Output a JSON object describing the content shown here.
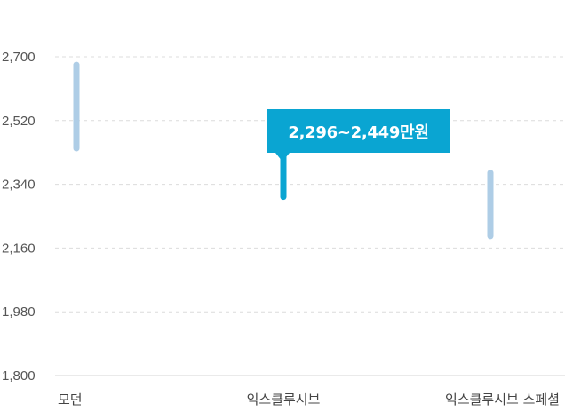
{
  "chart_data": {
    "type": "range-bar",
    "title": "",
    "xlabel": "",
    "ylabel": "",
    "ylim": [
      1800,
      2700
    ],
    "yticks": [
      1800,
      1980,
      2160,
      2340,
      2520,
      2700
    ],
    "ytick_labels": [
      "1,800",
      "1,980",
      "2,160",
      "2,340",
      "2,520",
      "2,700"
    ],
    "grid": true,
    "categories": [
      "모던",
      "익스클루시브",
      "익스클루시브 스페셜"
    ],
    "ranges": [
      {
        "category": "모던",
        "low": 2433,
        "high": 2686,
        "highlighted": false
      },
      {
        "category": "익스클루시브",
        "low": 2296,
        "high": 2449,
        "highlighted": true
      },
      {
        "category": "익스클루시브 스페셜",
        "low": 2185,
        "high": 2381,
        "highlighted": false
      }
    ],
    "colors": {
      "default": "#aecde6",
      "highlight": "#0aa5d2"
    },
    "tooltip": {
      "text": "2,296~2,449만원",
      "category": "익스클루시브"
    }
  }
}
